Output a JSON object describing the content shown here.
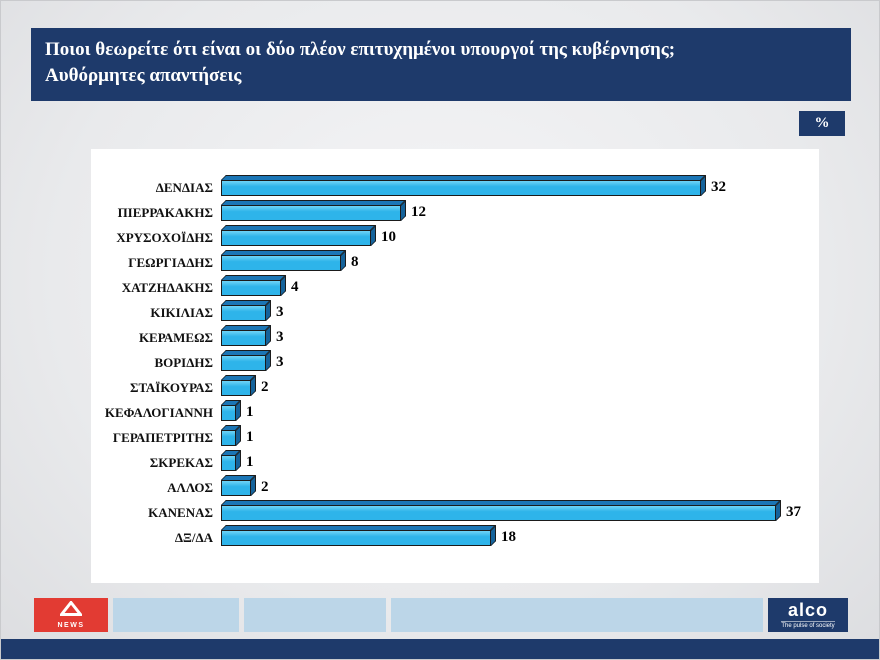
{
  "header": {
    "title_line1": "Ποιοι θεωρείτε ότι είναι οι δύο πλέον επιτυχημένοι υπουργοί της κυβέρνησης;",
    "title_line2": "Αυθόρμητες απαντήσεις",
    "unit_badge": "%"
  },
  "chart_data": {
    "type": "bar",
    "orientation": "horizontal",
    "title": "Ποιοι θεωρείτε ότι είναι οι δύο πλέον επιτυχημένοι υπουργοί της κυβέρνησης; Αυθόρμητες απαντήσεις",
    "unit": "%",
    "categories": [
      "ΔΕΝΔΙΑΣ",
      "ΠΙΕΡΡΑΚΑΚΗΣ",
      "ΧΡΥΣΟΧΟΪΔΗΣ",
      "ΓΕΩΡΓΙΑΔΗΣ",
      "ΧΑΤΖΗΔΑΚΗΣ",
      "ΚΙΚΙΛΙΑΣ",
      "ΚΕΡΑΜΕΩΣ",
      "ΒΟΡΙΔΗΣ",
      "ΣΤΑΪΚΟΥΡΑΣ",
      "ΚΕΦΑΛΟΓΙΑΝΝΗ",
      "ΓΕΡΑΠΕΤΡΙΤΗΣ",
      "ΣΚΡΕΚΑΣ",
      "ΑΛΛΟΣ",
      "ΚΑΝΕΝΑΣ",
      "ΔΞ/ΔΑ"
    ],
    "values": [
      32,
      12,
      10,
      8,
      4,
      3,
      3,
      3,
      2,
      1,
      1,
      1,
      2,
      37,
      18
    ],
    "xlim": [
      0,
      40
    ],
    "grid": false,
    "legend": "none",
    "value_labels": true,
    "bar_color": "#2eb4ea",
    "bar_highlight_color": "#6fd4f6",
    "bar_top_color": "#1b76b6",
    "bar_side_color": "#15639b",
    "value_label_color": "#000000"
  },
  "footer": {
    "alpha_logo_text": "NEWS",
    "alco_text": "alco",
    "alco_tagline": "The pulse of society"
  },
  "colors": {
    "navy": "#1e3a6b",
    "footer_segment_blue": "#bcd6e8",
    "alpha_red": "#e23b33",
    "panel_white": "#ffffff"
  }
}
